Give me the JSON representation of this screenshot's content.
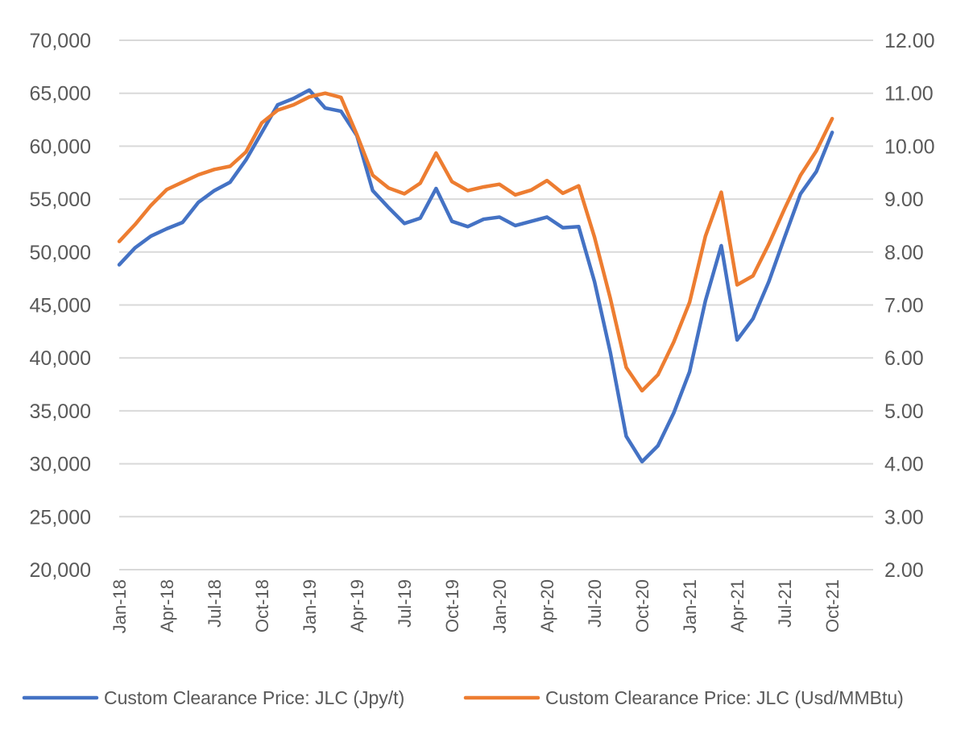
{
  "chart_data": {
    "type": "line",
    "title": "",
    "xlabel": "",
    "ylabel": "",
    "y2label": "",
    "grid": true,
    "legend_position": "bottom",
    "x": [
      "Jan-18",
      "Feb-18",
      "Mar-18",
      "Apr-18",
      "May-18",
      "Jun-18",
      "Jul-18",
      "Aug-18",
      "Sep-18",
      "Oct-18",
      "Nov-18",
      "Dec-18",
      "Jan-19",
      "Feb-19",
      "Mar-19",
      "Apr-19",
      "May-19",
      "Jun-19",
      "Jul-19",
      "Aug-19",
      "Sep-19",
      "Oct-19",
      "Nov-19",
      "Dec-19",
      "Jan-20",
      "Feb-20",
      "Mar-20",
      "Apr-20",
      "May-20",
      "Jun-20",
      "Jul-20",
      "Aug-20",
      "Sep-20",
      "Oct-20",
      "Nov-20",
      "Dec-20",
      "Jan-21",
      "Feb-21",
      "Mar-21",
      "Apr-21",
      "May-21",
      "Jun-21",
      "Jul-21",
      "Aug-21",
      "Sep-21",
      "Oct-21"
    ],
    "x_tick_labels": [
      "Jan-18",
      "Apr-18",
      "Jul-18",
      "Oct-18",
      "Jan-19",
      "Apr-19",
      "Jul-19",
      "Oct-19",
      "Jan-20",
      "Apr-20",
      "Jul-20",
      "Oct-20",
      "Jan-21",
      "Apr-21",
      "Jul-21",
      "Oct-21"
    ],
    "ylim": [
      20000,
      70000
    ],
    "y_ticks": [
      "20,000",
      "25,000",
      "30,000",
      "35,000",
      "40,000",
      "45,000",
      "50,000",
      "55,000",
      "60,000",
      "65,000",
      "70,000"
    ],
    "y2lim": [
      2.0,
      12.0
    ],
    "y2_ticks": [
      "2.00",
      "3.00",
      "4.00",
      "5.00",
      "6.00",
      "7.00",
      "8.00",
      "9.00",
      "10.00",
      "11.00",
      "12.00"
    ],
    "series": [
      {
        "name": "Custom Clearance Price: JLC (Jpy/t)",
        "axis": "left",
        "color": "#4472C4",
        "values": [
          48800,
          50400,
          51500,
          52200,
          52800,
          54700,
          55800,
          56600,
          58700,
          61300,
          63900,
          64500,
          65300,
          63600,
          63300,
          61000,
          55800,
          54200,
          52700,
          53200,
          56000,
          52900,
          52400,
          53100,
          53300,
          52500,
          52900,
          53300,
          52300,
          52400,
          47200,
          40500,
          32600,
          30200,
          31700,
          34800,
          38700,
          45400,
          50600,
          41700,
          43700,
          47200,
          51400,
          55500,
          57600,
          61300
        ]
      },
      {
        "name": "Custom Clearance Price: JLC (Usd/MMBtu)",
        "axis": "right",
        "color": "#ED7D31",
        "values": [
          8.2,
          8.52,
          8.88,
          9.18,
          9.32,
          9.46,
          9.56,
          9.62,
          9.89,
          10.44,
          10.68,
          10.78,
          10.93,
          11.0,
          10.92,
          10.22,
          9.45,
          9.21,
          9.1,
          9.3,
          9.87,
          9.33,
          9.16,
          9.23,
          9.28,
          9.08,
          9.17,
          9.35,
          9.11,
          9.25,
          8.28,
          7.12,
          5.82,
          5.38,
          5.68,
          6.3,
          7.05,
          8.3,
          9.13,
          7.38,
          7.55,
          8.15,
          8.82,
          9.45,
          9.91,
          10.52
        ]
      }
    ]
  }
}
